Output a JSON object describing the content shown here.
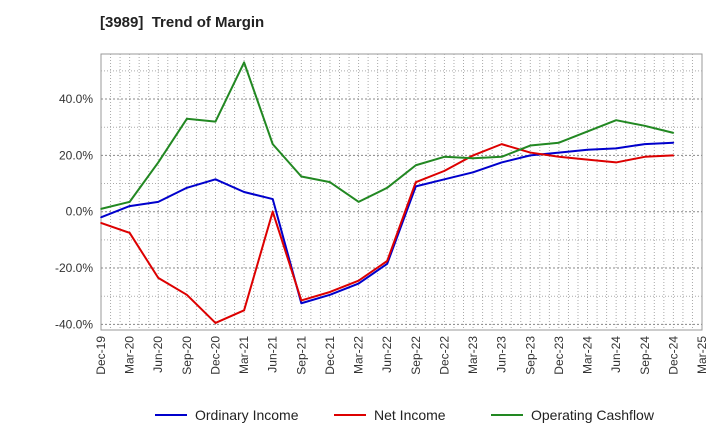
{
  "chart_data": {
    "type": "line",
    "title": "[3989]  Trend of Margin",
    "xlabel": "",
    "ylabel": "",
    "categories": [
      "Dec-19",
      "Mar-20",
      "Jun-20",
      "Sep-20",
      "Dec-20",
      "Mar-21",
      "Jun-21",
      "Sep-21",
      "Dec-21",
      "Mar-22",
      "Jun-22",
      "Sep-22",
      "Dec-22",
      "Mar-23",
      "Jun-23",
      "Sep-23",
      "Dec-23",
      "Mar-24",
      "Jun-24",
      "Sep-24",
      "Dec-24",
      "Mar-25"
    ],
    "ylim": [
      -42,
      56
    ],
    "yticks": [
      -40,
      -20,
      0,
      20,
      40
    ],
    "ytick_labels": [
      "-40.0%",
      "-20.0%",
      "0.0%",
      "20.0%",
      "40.0%"
    ],
    "grid": true,
    "legend_position": "bottom",
    "series": [
      {
        "name": "Ordinary Income",
        "color": "#0000cc",
        "x": [
          "Dec-19",
          "Mar-20",
          "Jun-20",
          "Sep-20",
          "Dec-20",
          "Mar-21",
          "Jun-21",
          "Sep-21",
          "Dec-21",
          "Mar-22",
          "Jun-22",
          "Sep-22",
          "Dec-22",
          "Mar-23",
          "Jun-23",
          "Sep-23",
          "Dec-23",
          "Mar-24",
          "Jun-24",
          "Sep-24",
          "Dec-24"
        ],
        "values": [
          -2.0,
          2.0,
          3.5,
          8.5,
          11.5,
          7.0,
          4.5,
          -32.5,
          -29.5,
          -25.5,
          -18.5,
          9.0,
          11.5,
          14.0,
          17.5,
          20.0,
          21.0,
          22.0,
          22.5,
          24.0,
          24.5
        ]
      },
      {
        "name": "Net Income",
        "color": "#dd0000",
        "x": [
          "Dec-19",
          "Mar-20",
          "Jun-20",
          "Sep-20",
          "Dec-20",
          "Mar-21",
          "Jun-21",
          "Sep-21",
          "Dec-21",
          "Mar-22",
          "Jun-22",
          "Sep-22",
          "Dec-22",
          "Mar-23",
          "Jun-23",
          "Sep-23",
          "Dec-23",
          "Mar-24",
          "Jun-24",
          "Sep-24",
          "Dec-24"
        ],
        "values": [
          -4.0,
          -7.5,
          -23.5,
          -29.5,
          -39.5,
          -35.0,
          0.0,
          -31.5,
          -28.5,
          -24.5,
          -17.5,
          10.5,
          14.5,
          20.0,
          24.0,
          21.0,
          19.5,
          18.5,
          17.5,
          19.5,
          20.0
        ]
      },
      {
        "name": "Operating Cashflow",
        "color": "#228822",
        "x": [
          "Dec-19",
          "Mar-20",
          "Jun-20",
          "Sep-20",
          "Dec-20",
          "Mar-21",
          "Jun-21",
          "Sep-21",
          "Dec-21",
          "Mar-22",
          "Jun-22",
          "Sep-22",
          "Dec-22",
          "Mar-23",
          "Jun-23",
          "Sep-23",
          "Dec-23",
          "Mar-24",
          "Jun-24",
          "Sep-24",
          "Dec-24"
        ],
        "values": [
          1.0,
          3.5,
          17.5,
          33.0,
          32.0,
          53.0,
          24.0,
          12.5,
          10.5,
          3.5,
          8.5,
          16.5,
          19.5,
          19.0,
          19.5,
          23.5,
          24.5,
          28.5,
          32.5,
          30.5,
          28.0
        ]
      }
    ]
  }
}
